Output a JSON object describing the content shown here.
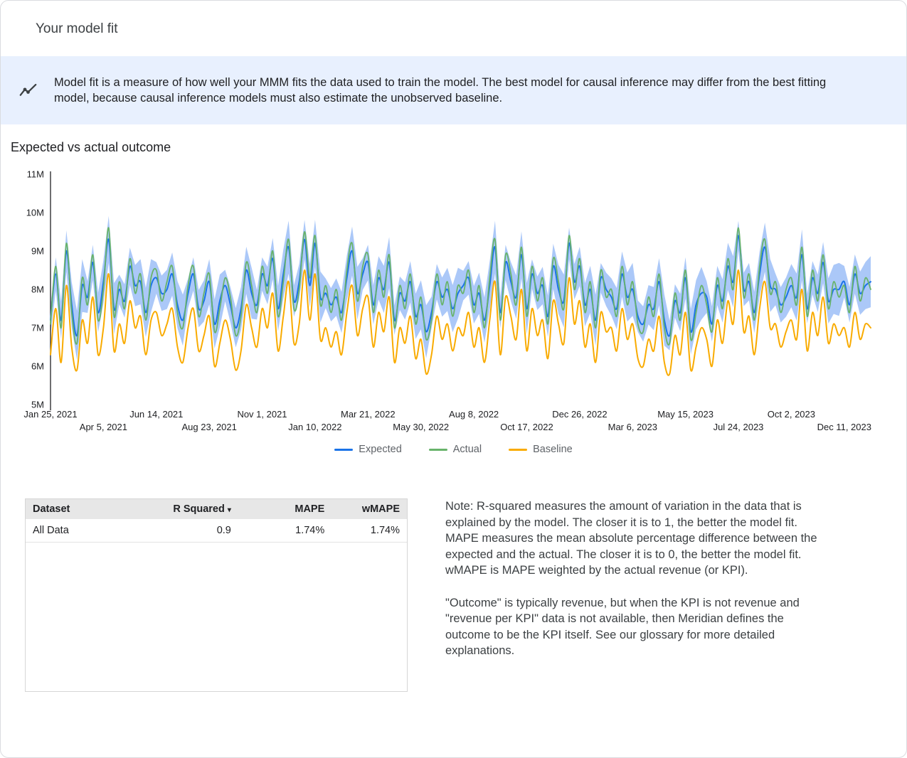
{
  "header": {
    "title": "Your model fit"
  },
  "banner": {
    "icon": "insights-icon",
    "text": "Model fit is a measure of how well your MMM fits the data used to train the model. The best model for causal inference may differ from the best fitting model, because causal inference models must also estimate the unobserved baseline."
  },
  "chart_data": {
    "type": "line",
    "title": "Expected vs actual outcome",
    "unit": "outcome (millions)",
    "ylim": [
      5,
      11
    ],
    "y_tick_values": [
      5,
      6,
      7,
      8,
      9,
      10,
      11
    ],
    "y_tick_labels": [
      "5M",
      "6M",
      "7M",
      "8M",
      "9M",
      "10M",
      "11M"
    ],
    "x_tick_indices": [
      0,
      10,
      20,
      30,
      40,
      50,
      60,
      70,
      80,
      90,
      100,
      110,
      120,
      130,
      140,
      150
    ],
    "x_tick_labels": [
      "Jan 25, 2021",
      "Apr 5, 2021",
      "Jun 14, 2021",
      "Aug 23, 2021",
      "Nov 1, 2021",
      "Jan 10, 2022",
      "Mar 21, 2022",
      "May 30, 2022",
      "Aug 8, 2022",
      "Oct 17, 2022",
      "Dec 26, 2022",
      "Mar 6, 2023",
      "May 15, 2023",
      "Jul 24, 2023",
      "Oct 2, 2023",
      "Dec 11, 2023"
    ],
    "grid": false,
    "legend_position": "bottom",
    "band": {
      "series": "Expected",
      "halfwidth": 0.55,
      "color": "#abc8f8",
      "label": "credible interval"
    },
    "series": [
      {
        "name": "Expected",
        "color": "#1a73e8",
        "width": 2,
        "values": [
          7.2,
          8.4,
          7.2,
          9.0,
          7.6,
          6.8,
          8.1,
          7.8,
          8.7,
          7.4,
          8.2,
          9.3,
          7.5,
          8.0,
          7.7,
          8.6,
          8.1,
          8.2,
          7.4,
          8.1,
          8.3,
          7.9,
          8.0,
          8.4,
          7.6,
          7.2,
          7.9,
          8.4,
          7.5,
          7.7,
          8.2,
          7.1,
          7.7,
          8.1,
          7.6,
          7.0,
          7.5,
          8.5,
          7.9,
          7.6,
          8.4,
          8.1,
          8.8,
          7.5,
          8.4,
          9.1,
          7.7,
          8.2,
          9.3,
          8.1,
          9.2,
          7.8,
          7.9,
          7.6,
          7.8,
          7.4,
          8.3,
          9.0,
          7.9,
          8.4,
          8.7,
          7.6,
          8.3,
          8.0,
          8.7,
          7.2,
          7.9,
          7.7,
          8.2,
          7.3,
          7.6,
          6.9,
          7.4,
          8.2,
          7.8,
          8.0,
          7.5,
          7.9,
          8.1,
          8.3,
          7.6,
          7.9,
          7.2,
          8.1,
          9.1,
          7.4,
          8.7,
          8.2,
          7.8,
          8.9,
          7.5,
          8.4,
          7.9,
          8.1,
          7.3,
          8.6,
          8.0,
          7.7,
          9.2,
          8.2,
          8.6,
          7.6,
          8.0,
          7.2,
          8.3,
          8.0,
          7.8,
          7.5,
          8.4,
          7.8,
          8.0,
          7.3,
          7.1,
          7.6,
          7.5,
          8.2,
          7.2,
          6.8,
          7.7,
          7.4,
          8.3,
          6.9,
          7.6,
          7.9,
          7.8,
          7.1,
          8.1,
          7.7,
          8.6,
          8.2,
          9.4,
          8.0,
          8.2,
          7.4,
          8.4,
          9.1,
          8.1,
          8.0,
          7.6,
          7.8,
          8.1,
          7.8,
          8.9,
          7.5,
          8.3,
          7.9,
          8.7,
          7.7,
          8.0,
          8.0,
          8.2,
          7.6,
          8.4,
          7.9,
          8.1,
          8.2
        ]
      },
      {
        "name": "Actual",
        "color": "#68b36b",
        "width": 1.8,
        "values": [
          7.1,
          8.6,
          7.0,
          9.2,
          7.4,
          6.6,
          8.3,
          7.6,
          8.9,
          7.2,
          8.0,
          9.6,
          7.3,
          8.2,
          7.5,
          8.8,
          7.9,
          8.4,
          7.2,
          8.3,
          8.5,
          7.7,
          8.2,
          8.6,
          7.4,
          7.0,
          8.1,
          8.6,
          7.3,
          7.9,
          8.4,
          6.9,
          7.5,
          8.3,
          7.8,
          6.8,
          7.3,
          8.7,
          8.1,
          7.4,
          8.6,
          7.9,
          9.0,
          7.3,
          8.2,
          9.3,
          7.5,
          8.0,
          9.5,
          8.3,
          9.4,
          7.6,
          8.1,
          7.4,
          8.0,
          7.2,
          8.5,
          9.2,
          7.7,
          8.6,
          8.9,
          7.4,
          8.5,
          7.8,
          8.9,
          7.0,
          8.1,
          7.5,
          8.4,
          7.1,
          7.8,
          6.7,
          7.2,
          8.4,
          7.6,
          8.2,
          7.3,
          8.1,
          7.9,
          8.5,
          7.4,
          8.1,
          7.0,
          8.3,
          9.3,
          7.2,
          8.9,
          8.4,
          7.6,
          9.1,
          7.3,
          8.6,
          7.7,
          8.3,
          7.1,
          8.8,
          8.2,
          7.5,
          9.4,
          8.0,
          8.8,
          7.4,
          8.2,
          7.0,
          8.5,
          7.8,
          8.0,
          7.3,
          8.6,
          7.6,
          8.2,
          7.1,
          6.9,
          7.8,
          7.3,
          8.4,
          7.0,
          6.6,
          7.9,
          7.2,
          8.5,
          6.7,
          7.4,
          8.1,
          7.6,
          6.9,
          8.3,
          7.5,
          8.8,
          8.0,
          9.6,
          7.8,
          8.4,
          7.2,
          8.6,
          9.3,
          7.9,
          8.2,
          7.4,
          8.0,
          8.3,
          7.6,
          9.1,
          7.3,
          8.5,
          7.7,
          8.9,
          7.5,
          8.2,
          7.8,
          8.1,
          7.4,
          8.6,
          7.7,
          8.3,
          8.0
        ]
      },
      {
        "name": "Baseline",
        "color": "#f9ab00",
        "width": 2,
        "values": [
          6.3,
          7.5,
          6.1,
          8.1,
          6.5,
          5.9,
          7.2,
          6.6,
          7.8,
          6.3,
          7.0,
          8.4,
          6.4,
          7.1,
          6.6,
          7.7,
          7.0,
          7.3,
          6.3,
          7.2,
          7.4,
          6.8,
          7.1,
          7.5,
          6.5,
          6.1,
          7.0,
          7.5,
          6.4,
          6.8,
          7.3,
          6.0,
          6.6,
          7.2,
          6.7,
          5.9,
          6.4,
          7.6,
          7.0,
          6.5,
          7.5,
          7.0,
          7.9,
          6.4,
          7.3,
          8.2,
          6.6,
          7.1,
          8.5,
          7.2,
          8.4,
          6.7,
          7.0,
          6.5,
          6.9,
          6.3,
          7.4,
          8.1,
          6.8,
          7.5,
          7.8,
          6.5,
          7.4,
          6.9,
          7.8,
          6.1,
          7.0,
          6.6,
          7.3,
          6.2,
          6.7,
          5.8,
          6.3,
          7.3,
          6.7,
          7.1,
          6.4,
          7.0,
          6.8,
          7.4,
          6.5,
          7.0,
          6.1,
          7.2,
          8.2,
          6.3,
          7.8,
          7.3,
          6.7,
          8.0,
          6.4,
          7.5,
          6.8,
          7.2,
          6.2,
          7.7,
          7.1,
          6.6,
          8.3,
          7.1,
          7.7,
          6.5,
          7.1,
          6.1,
          7.4,
          6.9,
          7.0,
          6.4,
          7.5,
          6.7,
          7.1,
          6.2,
          6.0,
          6.7,
          6.4,
          7.3,
          6.1,
          5.8,
          6.8,
          6.3,
          7.4,
          5.9,
          6.5,
          7.0,
          6.7,
          6.0,
          7.2,
          6.6,
          7.7,
          7.1,
          8.5,
          6.9,
          7.3,
          6.3,
          7.5,
          8.2,
          7.0,
          7.1,
          6.5,
          6.9,
          7.2,
          6.7,
          8.0,
          6.4,
          7.4,
          6.8,
          7.8,
          6.6,
          7.1,
          6.8,
          7.0,
          6.5,
          7.4,
          6.7,
          7.1,
          7.0
        ]
      }
    ]
  },
  "table": {
    "columns": [
      "Dataset",
      "R Squared",
      "MAPE",
      "wMAPE"
    ],
    "sort_column": "R Squared",
    "sort_indicator": "▾",
    "rows": [
      [
        "All Data",
        "0.9",
        "1.74%",
        "1.74%"
      ]
    ]
  },
  "notes": {
    "paragraph1": "Note: R-squared measures the amount of variation in the data that is explained by the model. The closer it is to 1, the better the model fit. MAPE measures the mean absolute percentage difference between the expected and the actual. The closer it is to 0, the better the model fit. wMAPE is MAPE weighted by the actual revenue (or KPI).",
    "paragraph2": "\"Outcome\" is typically revenue, but when the KPI is not revenue and \"revenue per KPI\" data is not available, then Meridian defines the outcome to be the KPI itself. See our glossary for more detailed explanations."
  }
}
